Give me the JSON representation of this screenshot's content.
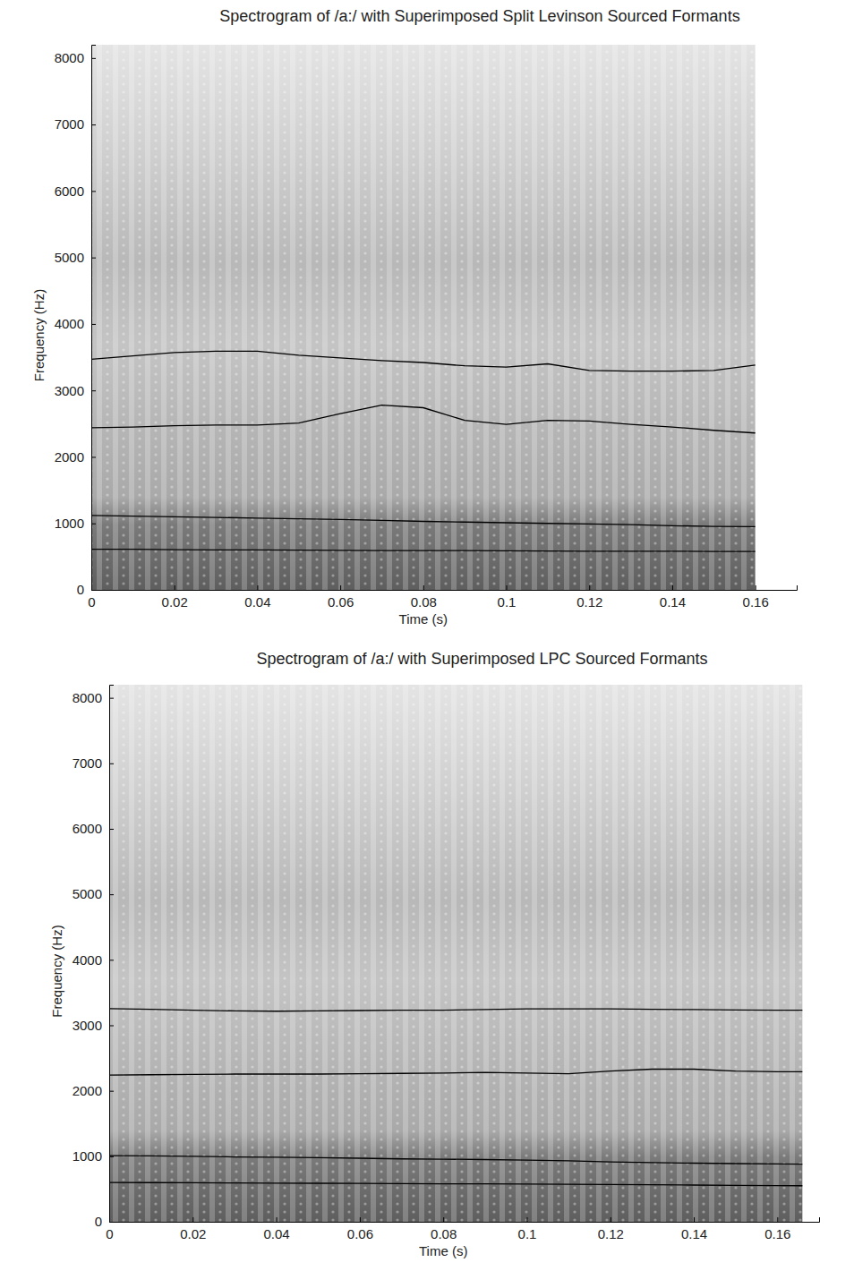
{
  "chart_data": [
    {
      "type": "line",
      "title": "Spectrogram of /a:/ with Superimposed Split Levinson Sourced Formants",
      "x_label": "Time (s)",
      "y_label": "Frequency (Hz)",
      "xlim": [
        0,
        0.17
      ],
      "ylim": [
        0,
        8200
      ],
      "xticks": [
        0,
        0.02,
        0.04,
        0.06,
        0.08,
        0.1,
        0.12,
        0.14,
        0.16
      ],
      "yticks": [
        0,
        1000,
        2000,
        3000,
        4000,
        5000,
        6000,
        7000,
        8000
      ],
      "grid": false,
      "x": [
        0,
        0.01,
        0.02,
        0.03,
        0.04,
        0.05,
        0.06,
        0.07,
        0.08,
        0.09,
        0.1,
        0.11,
        0.12,
        0.13,
        0.14,
        0.15,
        0.16
      ],
      "series": [
        {
          "color": "#000000",
          "values": [
            610,
            610,
            605,
            600,
            600,
            598,
            595,
            592,
            590,
            590,
            588,
            585,
            582,
            580,
            580,
            578,
            578
          ]
        },
        {
          "color": "#000000",
          "values": [
            1120,
            1110,
            1100,
            1090,
            1080,
            1070,
            1060,
            1045,
            1030,
            1020,
            1010,
            1000,
            990,
            980,
            965,
            955,
            950
          ]
        },
        {
          "color": "#000000",
          "values": [
            2440,
            2450,
            2470,
            2480,
            2480,
            2510,
            2650,
            2780,
            2740,
            2550,
            2490,
            2550,
            2540,
            2490,
            2450,
            2400,
            2360
          ]
        },
        {
          "color": "#000000",
          "values": [
            3470,
            3520,
            3570,
            3590,
            3590,
            3530,
            3490,
            3450,
            3420,
            3370,
            3350,
            3400,
            3300,
            3290,
            3290,
            3300,
            3380
          ]
        }
      ]
    },
    {
      "type": "line",
      "title": "Spectrogram of /a:/ with Superimposed LPC Sourced Formants",
      "x_label": "Time (s)",
      "y_label": "Frequency (Hz)",
      "xlim": [
        0,
        0.17
      ],
      "ylim": [
        0,
        8200
      ],
      "xticks": [
        0,
        0.02,
        0.04,
        0.06,
        0.08,
        0.1,
        0.12,
        0.14,
        0.16
      ],
      "yticks": [
        0,
        1000,
        2000,
        3000,
        4000,
        5000,
        6000,
        7000,
        8000
      ],
      "grid": false,
      "x": [
        0,
        0.01,
        0.02,
        0.03,
        0.04,
        0.05,
        0.06,
        0.07,
        0.08,
        0.09,
        0.1,
        0.11,
        0.12,
        0.13,
        0.14,
        0.15,
        0.16,
        0.166
      ],
      "series": [
        {
          "color": "#000000",
          "values": [
            600,
            598,
            595,
            592,
            590,
            588,
            585,
            582,
            580,
            578,
            575,
            572,
            570,
            565,
            560,
            555,
            552,
            550
          ]
        },
        {
          "color": "#000000",
          "values": [
            1010,
            1005,
            1000,
            990,
            985,
            980,
            970,
            960,
            955,
            950,
            940,
            930,
            915,
            905,
            895,
            888,
            882,
            880
          ]
        },
        {
          "color": "#000000",
          "values": [
            2240,
            2245,
            2250,
            2255,
            2255,
            2255,
            2260,
            2265,
            2270,
            2280,
            2270,
            2260,
            2300,
            2330,
            2330,
            2300,
            2290,
            2290
          ]
        },
        {
          "color": "#000000",
          "values": [
            3255,
            3245,
            3230,
            3220,
            3215,
            3220,
            3225,
            3230,
            3230,
            3240,
            3250,
            3250,
            3250,
            3245,
            3240,
            3235,
            3230,
            3230
          ]
        }
      ]
    }
  ]
}
